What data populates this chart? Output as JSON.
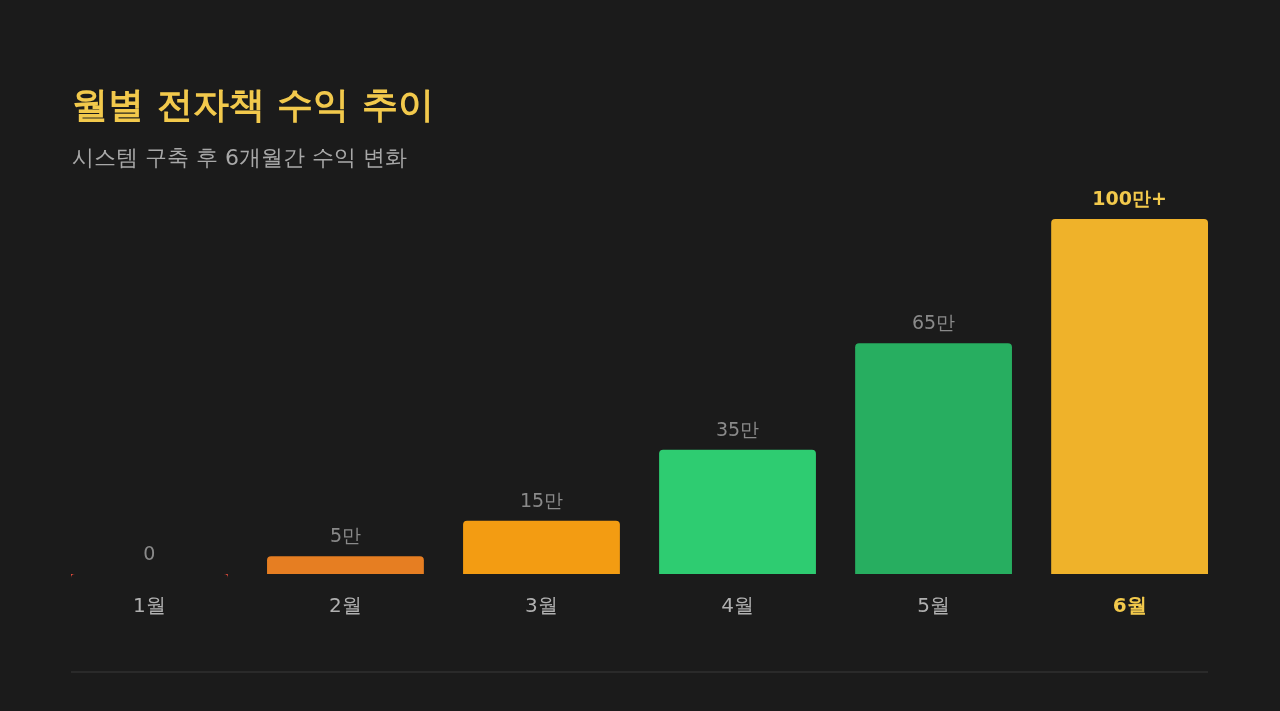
{
  "chart_data": {
    "type": "bar",
    "title": "월별 전자책 수익 추이",
    "subtitle": "시스템 구축 후 6개월간 수익 변화",
    "categories": [
      "1월",
      "2월",
      "3월",
      "4월",
      "5월",
      "6월"
    ],
    "values": [
      0,
      5,
      15,
      35,
      65,
      100
    ],
    "value_labels": [
      "0",
      "5만",
      "15만",
      "35만",
      "65만",
      "100만+"
    ],
    "colors": [
      "#e74c3c",
      "#e67e22",
      "#f39c12",
      "#2ecc71",
      "#27ae60",
      "#efb22a"
    ]
  }
}
